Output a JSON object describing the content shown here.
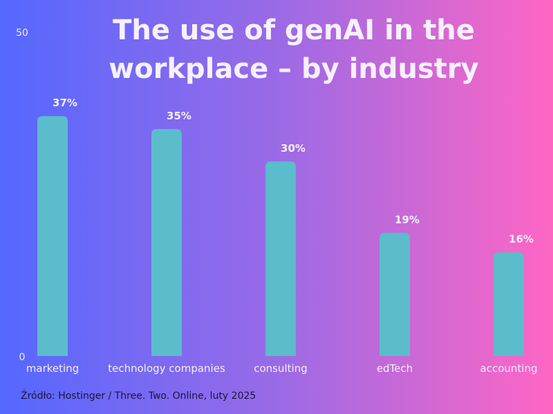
{
  "chart_data": {
    "type": "bar",
    "title": "The use of genAI in the workplace – by industry",
    "categories": [
      "marketing",
      "technology companies",
      "consulting",
      "edTech",
      "accounting"
    ],
    "values": [
      37,
      35,
      30,
      19,
      16
    ],
    "data_labels": [
      "37%",
      "35%",
      "30%",
      "19%",
      "16%"
    ],
    "ylim": [
      0,
      50
    ],
    "yticks": [
      "0",
      "50"
    ],
    "xlabel": "",
    "ylabel": "",
    "grid": false,
    "bar_color": "#5bbccc"
  },
  "source": "Źródło: Hostinger / Three. Two. Online, luty 2025"
}
